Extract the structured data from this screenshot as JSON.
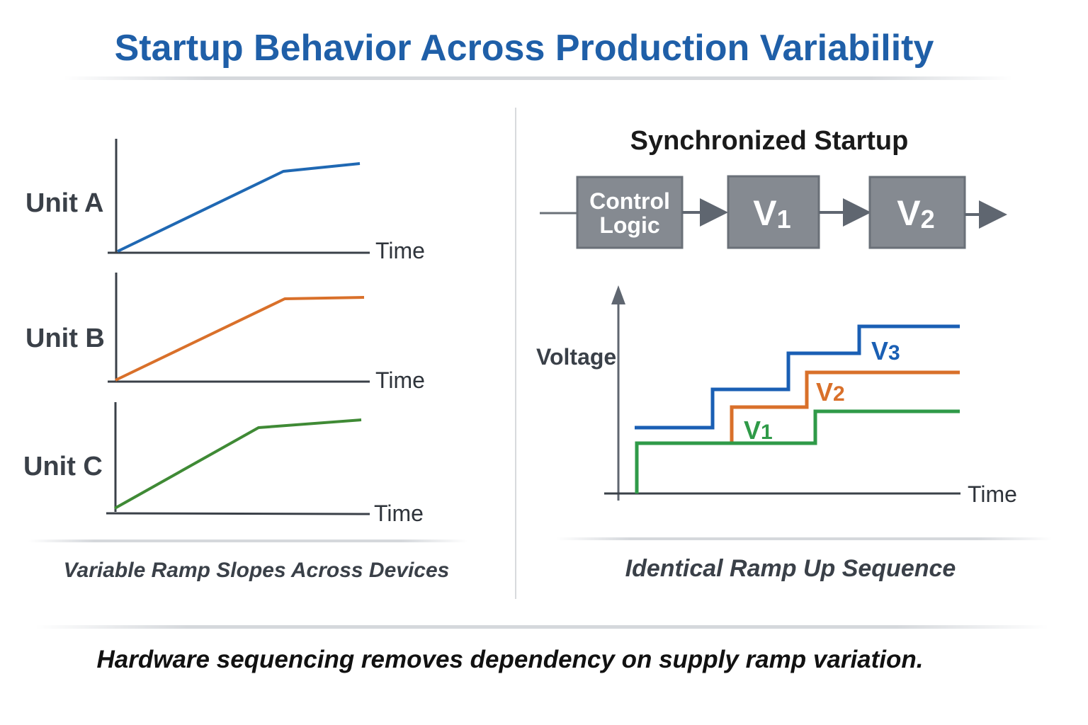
{
  "title": "Startup Behavior Across Production Variability",
  "left_panel": {
    "units": [
      {
        "label": "Unit A",
        "axis_label": "Time",
        "color": "#1f68b3"
      },
      {
        "label": "Unit B",
        "axis_label": "Time",
        "color": "#d9702a"
      },
      {
        "label": "Unit C",
        "axis_label": "Time",
        "color": "#3f8a35"
      }
    ],
    "caption": "Variable Ramp Slopes Across Devices"
  },
  "right_panel": {
    "heading": "Synchronized Startup",
    "blocks": [
      {
        "line1": "Control",
        "line2": "Logic"
      },
      {
        "main": "V",
        "sub": "1"
      },
      {
        "main": "V",
        "sub": "2"
      }
    ],
    "y_label": "Voltage",
    "x_label": "Time",
    "series": [
      {
        "name": "V",
        "sub": "3",
        "color": "#1a5fb4"
      },
      {
        "name": "V",
        "sub": "2",
        "color": "#d9702a"
      },
      {
        "name": "V",
        "sub": "1",
        "color": "#2f9a48"
      }
    ],
    "caption": "Identical Ramp Up Sequence"
  },
  "footer": "Hardware sequencing removes dependency on supply ramp variation."
}
